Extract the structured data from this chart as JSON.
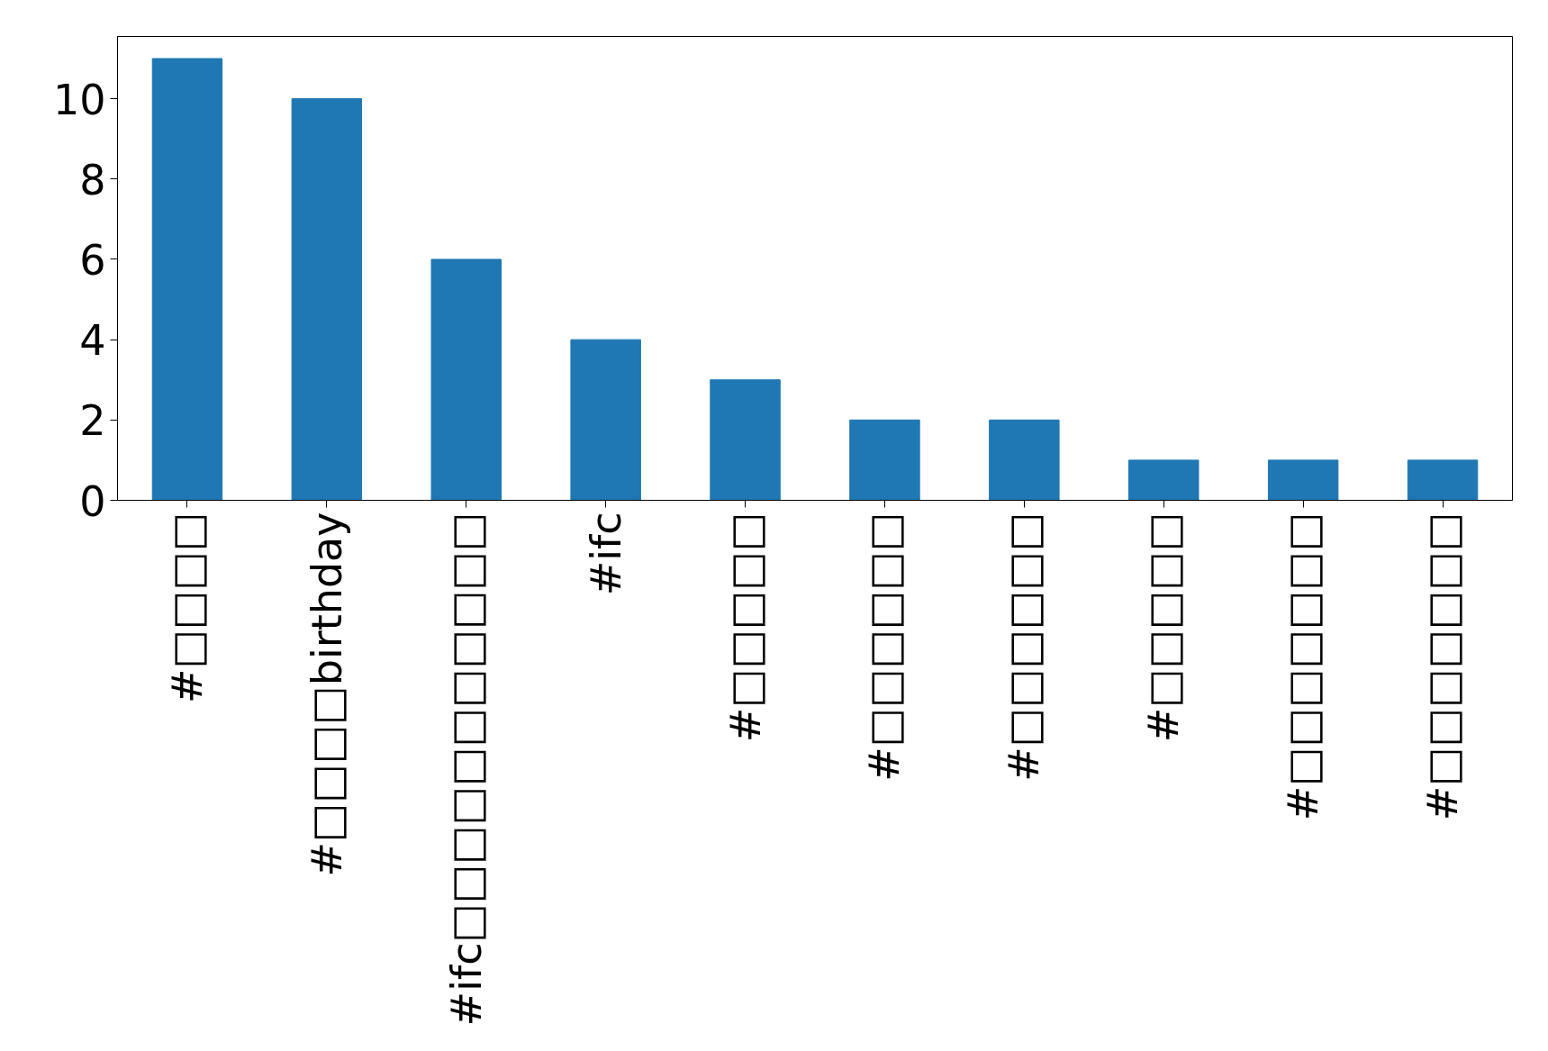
{
  "chart_data": {
    "type": "bar",
    "categories": [
      "#□□□□",
      "#□□□□birthday",
      "#ifc□□□□□□□□□□□",
      "#ifc",
      "#□□□□□",
      "#□□□□□□",
      "#□□□□□□",
      "#□□□□□",
      "#□□□□□□□",
      "#□□□□□□□"
    ],
    "values": [
      11,
      10,
      6,
      4,
      3,
      2,
      2,
      1,
      1,
      1
    ],
    "color": "#1f77b4",
    "ylim": [
      0,
      11.55
    ],
    "yticks": [
      0,
      2,
      4,
      6,
      8,
      10
    ],
    "grid": false
  }
}
